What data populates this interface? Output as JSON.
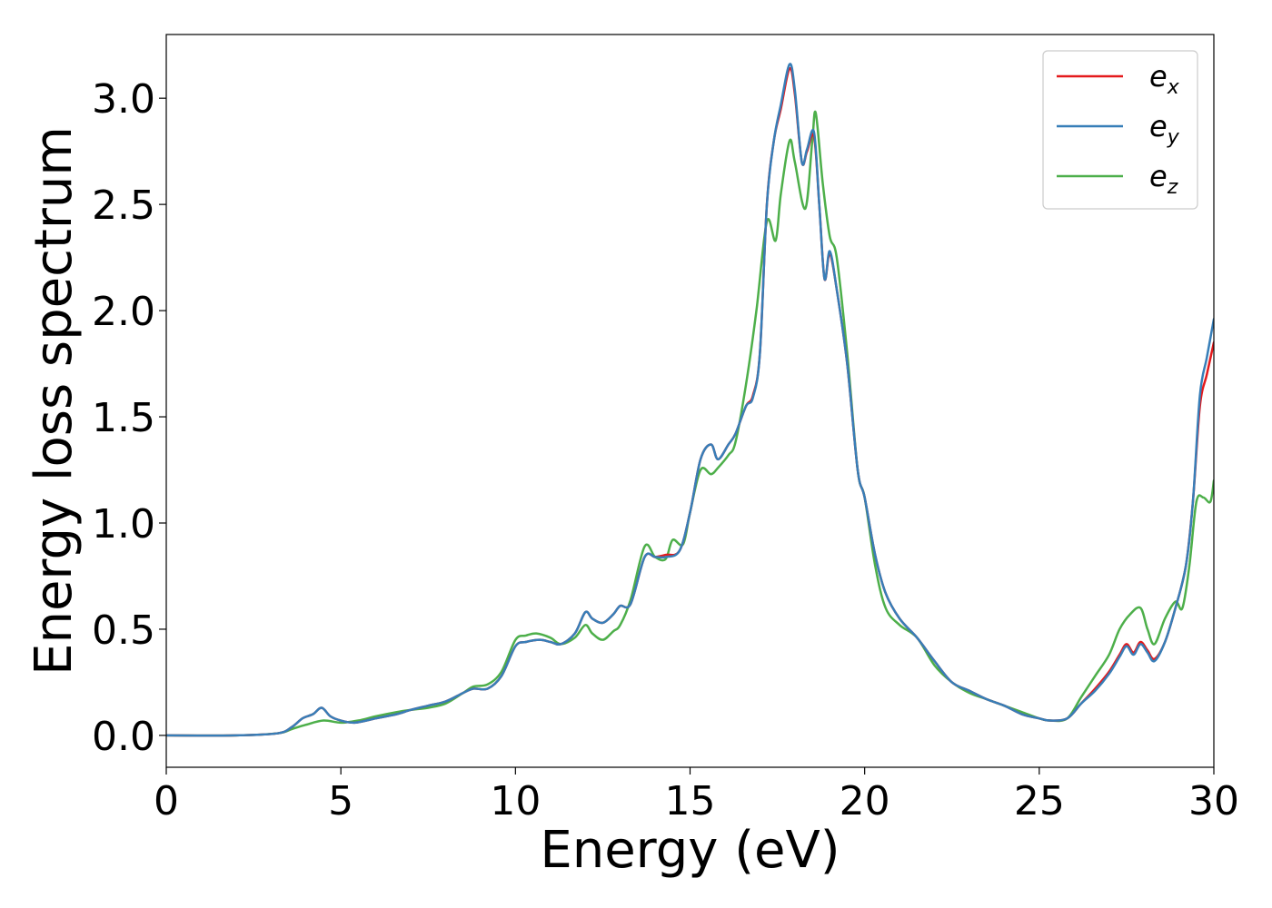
{
  "chart_data": {
    "type": "line",
    "title": "",
    "xlabel": "Energy (eV)",
    "ylabel": "Energy loss spectrum",
    "xlim": [
      0,
      30
    ],
    "ylim": [
      -0.15,
      3.3
    ],
    "xticks": [
      0,
      5,
      10,
      15,
      20,
      25,
      30
    ],
    "yticks": [
      0.0,
      0.5,
      1.0,
      1.5,
      2.0,
      2.5,
      3.0
    ],
    "xtick_labels": [
      "0",
      "5",
      "10",
      "15",
      "20",
      "25",
      "30"
    ],
    "ytick_labels": [
      "0.0",
      "0.5",
      "1.0",
      "1.5",
      "2.0",
      "2.5",
      "3.0"
    ],
    "grid": false,
    "legend_position": "top-right",
    "series": [
      {
        "name": "e_x",
        "label_base": "e",
        "label_sub": "x",
        "color": "#e41a1c",
        "x": [
          0,
          2,
          3.2,
          3.6,
          3.9,
          4.2,
          4.45,
          4.7,
          5.0,
          5.4,
          6.0,
          6.6,
          7.0,
          7.5,
          8.0,
          8.5,
          8.8,
          9.2,
          9.6,
          10.0,
          10.3,
          10.7,
          11.0,
          11.3,
          11.7,
          12.0,
          12.2,
          12.5,
          12.8,
          13.0,
          13.3,
          13.7,
          14.0,
          14.3,
          14.7,
          15.0,
          15.3,
          15.6,
          15.8,
          16.1,
          16.3,
          16.6,
          16.8,
          17.0,
          17.2,
          17.4,
          17.6,
          17.85,
          18.0,
          18.2,
          18.35,
          18.55,
          18.7,
          18.85,
          19.0,
          19.2,
          19.5,
          19.8,
          20.0,
          20.3,
          20.6,
          21.0,
          21.5,
          22.0,
          22.5,
          23.0,
          23.5,
          24.0,
          24.5,
          25.0,
          25.3,
          25.8,
          26.2,
          26.6,
          27.0,
          27.3,
          27.5,
          27.7,
          27.9,
          28.1,
          28.3,
          28.6,
          28.9,
          29.2,
          29.4,
          29.6,
          29.8,
          30.0
        ],
        "y": [
          0.0,
          0.0,
          0.01,
          0.04,
          0.08,
          0.1,
          0.13,
          0.09,
          0.07,
          0.06,
          0.08,
          0.1,
          0.12,
          0.14,
          0.16,
          0.2,
          0.22,
          0.22,
          0.28,
          0.42,
          0.44,
          0.45,
          0.44,
          0.43,
          0.48,
          0.58,
          0.55,
          0.53,
          0.57,
          0.61,
          0.62,
          0.84,
          0.84,
          0.85,
          0.87,
          1.05,
          1.3,
          1.37,
          1.3,
          1.37,
          1.42,
          1.55,
          1.6,
          1.8,
          2.5,
          2.8,
          2.95,
          3.14,
          3.02,
          2.7,
          2.75,
          2.82,
          2.5,
          2.15,
          2.27,
          2.1,
          1.75,
          1.25,
          1.12,
          0.85,
          0.67,
          0.55,
          0.46,
          0.35,
          0.25,
          0.21,
          0.17,
          0.14,
          0.1,
          0.08,
          0.07,
          0.08,
          0.15,
          0.22,
          0.3,
          0.38,
          0.43,
          0.39,
          0.44,
          0.4,
          0.36,
          0.44,
          0.6,
          0.8,
          1.1,
          1.55,
          1.7,
          1.85
        ]
      },
      {
        "name": "e_y",
        "label_base": "e",
        "label_sub": "y",
        "color": "#377eb8",
        "x": [
          0,
          2,
          3.2,
          3.6,
          3.9,
          4.2,
          4.45,
          4.7,
          5.0,
          5.4,
          6.0,
          6.6,
          7.0,
          7.5,
          8.0,
          8.5,
          8.8,
          9.2,
          9.6,
          10.0,
          10.3,
          10.7,
          11.0,
          11.3,
          11.7,
          12.0,
          12.2,
          12.5,
          12.8,
          13.0,
          13.3,
          13.7,
          14.0,
          14.3,
          14.7,
          15.0,
          15.3,
          15.6,
          15.8,
          16.1,
          16.3,
          16.6,
          16.8,
          17.0,
          17.2,
          17.4,
          17.6,
          17.85,
          18.0,
          18.2,
          18.35,
          18.55,
          18.7,
          18.85,
          19.0,
          19.2,
          19.5,
          19.8,
          20.0,
          20.3,
          20.6,
          21.0,
          21.5,
          22.0,
          22.5,
          23.0,
          23.5,
          24.0,
          24.5,
          25.0,
          25.3,
          25.8,
          26.2,
          26.6,
          27.0,
          27.3,
          27.5,
          27.7,
          27.9,
          28.1,
          28.3,
          28.6,
          28.9,
          29.2,
          29.4,
          29.6,
          29.8,
          30.0
        ],
        "y": [
          0.0,
          0.0,
          0.01,
          0.04,
          0.08,
          0.1,
          0.13,
          0.09,
          0.07,
          0.06,
          0.08,
          0.1,
          0.12,
          0.14,
          0.16,
          0.2,
          0.22,
          0.22,
          0.28,
          0.42,
          0.44,
          0.45,
          0.44,
          0.43,
          0.48,
          0.58,
          0.55,
          0.53,
          0.57,
          0.61,
          0.62,
          0.84,
          0.84,
          0.84,
          0.87,
          1.05,
          1.3,
          1.37,
          1.3,
          1.37,
          1.42,
          1.55,
          1.59,
          1.8,
          2.5,
          2.8,
          2.97,
          3.16,
          3.04,
          2.7,
          2.76,
          2.84,
          2.5,
          2.15,
          2.28,
          2.1,
          1.75,
          1.25,
          1.12,
          0.85,
          0.67,
          0.55,
          0.46,
          0.35,
          0.25,
          0.21,
          0.17,
          0.14,
          0.1,
          0.08,
          0.07,
          0.08,
          0.15,
          0.21,
          0.29,
          0.37,
          0.42,
          0.38,
          0.43,
          0.39,
          0.35,
          0.44,
          0.6,
          0.8,
          1.1,
          1.6,
          1.78,
          1.96
        ]
      },
      {
        "name": "e_z",
        "label_base": "e",
        "label_sub": "z",
        "color": "#4daf4a",
        "x": [
          0,
          2,
          3.2,
          3.6,
          4.0,
          4.5,
          5.0,
          5.5,
          6.0,
          6.6,
          7.0,
          7.5,
          8.0,
          8.5,
          8.8,
          9.2,
          9.6,
          10.0,
          10.3,
          10.6,
          11.0,
          11.3,
          11.7,
          12.0,
          12.2,
          12.5,
          12.8,
          13.0,
          13.3,
          13.7,
          14.0,
          14.3,
          14.5,
          14.8,
          15.0,
          15.3,
          15.6,
          15.8,
          16.1,
          16.3,
          16.6,
          16.9,
          17.2,
          17.45,
          17.6,
          17.85,
          18.0,
          18.3,
          18.5,
          18.6,
          18.8,
          19.0,
          19.2,
          19.5,
          19.8,
          20.0,
          20.3,
          20.6,
          21.0,
          21.5,
          22.0,
          22.5,
          23.0,
          23.5,
          24.0,
          24.5,
          25.0,
          25.3,
          25.8,
          26.2,
          26.6,
          27.0,
          27.3,
          27.6,
          27.9,
          28.1,
          28.3,
          28.6,
          28.9,
          29.1,
          29.3,
          29.5,
          29.7,
          29.9,
          30.0
        ],
        "y": [
          0.0,
          0.0,
          0.01,
          0.03,
          0.05,
          0.07,
          0.06,
          0.07,
          0.09,
          0.11,
          0.12,
          0.13,
          0.15,
          0.2,
          0.23,
          0.24,
          0.3,
          0.45,
          0.47,
          0.48,
          0.46,
          0.43,
          0.46,
          0.52,
          0.48,
          0.45,
          0.49,
          0.52,
          0.64,
          0.89,
          0.84,
          0.83,
          0.92,
          0.9,
          1.05,
          1.25,
          1.23,
          1.26,
          1.32,
          1.38,
          1.65,
          2.0,
          2.42,
          2.33,
          2.55,
          2.8,
          2.7,
          2.48,
          2.8,
          2.93,
          2.6,
          2.35,
          2.25,
          1.8,
          1.25,
          1.12,
          0.8,
          0.6,
          0.52,
          0.46,
          0.33,
          0.25,
          0.2,
          0.17,
          0.14,
          0.11,
          0.08,
          0.07,
          0.08,
          0.18,
          0.28,
          0.38,
          0.5,
          0.57,
          0.6,
          0.5,
          0.43,
          0.55,
          0.63,
          0.6,
          0.8,
          1.1,
          1.12,
          1.1,
          1.2
        ]
      }
    ]
  }
}
